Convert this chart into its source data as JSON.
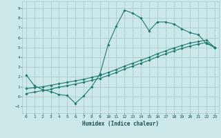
{
  "xlabel": "Humidex (Indice chaleur)",
  "background_color": "#cce8e8",
  "grid_color": "#aacccc",
  "line_color": "#1a7a6e",
  "xlim": [
    -0.5,
    23.5
  ],
  "ylim": [
    -1.7,
    9.7
  ],
  "xticks": [
    0,
    1,
    2,
    3,
    4,
    5,
    6,
    7,
    8,
    9,
    10,
    11,
    12,
    13,
    14,
    15,
    16,
    17,
    18,
    19,
    20,
    21,
    22,
    23
  ],
  "yticks": [
    -1,
    0,
    1,
    2,
    3,
    4,
    5,
    6,
    7,
    8,
    9
  ],
  "line1_x": [
    0,
    1,
    2,
    3,
    4,
    5,
    6,
    7,
    8,
    9,
    10,
    11,
    12,
    13,
    14,
    15,
    16,
    17,
    18,
    19,
    20,
    21,
    22,
    23
  ],
  "line1_y": [
    2.2,
    1.1,
    0.7,
    0.5,
    0.2,
    0.1,
    -0.7,
    0.05,
    1.0,
    2.3,
    5.3,
    7.2,
    8.8,
    8.5,
    8.0,
    6.7,
    7.6,
    7.6,
    7.4,
    6.9,
    6.5,
    6.3,
    5.4,
    5.0
  ],
  "line2_x": [
    0,
    1,
    2,
    3,
    4,
    5,
    6,
    7,
    8,
    9,
    10,
    11,
    12,
    13,
    14,
    15,
    16,
    17,
    18,
    19,
    20,
    21,
    22,
    23
  ],
  "line2_y": [
    0.8,
    0.9,
    1.0,
    1.15,
    1.3,
    1.45,
    1.6,
    1.75,
    1.95,
    2.15,
    2.45,
    2.75,
    3.1,
    3.4,
    3.7,
    4.0,
    4.35,
    4.65,
    4.95,
    5.2,
    5.45,
    5.6,
    5.75,
    5.0
  ],
  "line3_x": [
    0,
    1,
    2,
    3,
    4,
    5,
    6,
    7,
    8,
    9,
    10,
    11,
    12,
    13,
    14,
    15,
    16,
    17,
    18,
    19,
    20,
    21,
    22,
    23
  ],
  "line3_y": [
    0.3,
    0.45,
    0.6,
    0.75,
    0.95,
    1.1,
    1.28,
    1.45,
    1.65,
    1.85,
    2.15,
    2.45,
    2.8,
    3.1,
    3.4,
    3.7,
    4.05,
    4.35,
    4.65,
    4.9,
    5.15,
    5.35,
    5.5,
    5.0
  ]
}
